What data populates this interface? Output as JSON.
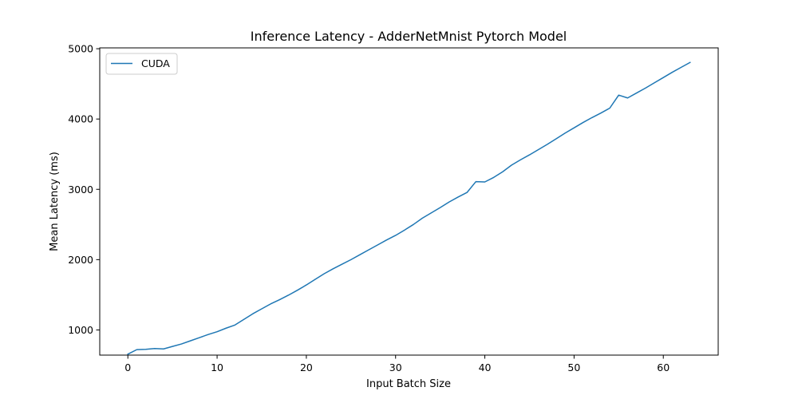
{
  "chart_data": {
    "type": "line",
    "title": "Inference Latency - AdderNetMnist Pytorch Model",
    "xlabel": "Input Batch Size",
    "ylabel": "Mean Latency (ms)",
    "xlim": [
      -3.15,
      66.15
    ],
    "ylim": [
      642,
      5012
    ],
    "xticks": [
      0,
      10,
      20,
      30,
      40,
      50,
      60
    ],
    "yticks": [
      1000,
      2000,
      3000,
      4000,
      5000
    ],
    "grid": false,
    "legend": {
      "placement": "top-left",
      "entries": [
        "CUDA"
      ]
    },
    "series": [
      {
        "name": "CUDA",
        "color": "#1f77b4",
        "x": [
          0,
          1,
          2,
          3,
          4,
          5,
          6,
          7,
          8,
          9,
          10,
          11,
          12,
          13,
          14,
          15,
          16,
          17,
          18,
          19,
          20,
          21,
          22,
          23,
          24,
          25,
          26,
          27,
          28,
          29,
          30,
          31,
          32,
          33,
          34,
          35,
          36,
          37,
          38,
          39,
          40,
          41,
          42,
          43,
          44,
          45,
          46,
          47,
          48,
          49,
          50,
          51,
          52,
          53,
          54,
          55,
          56,
          57,
          58,
          59,
          60,
          61,
          62,
          63
        ],
        "y": [
          655,
          720,
          725,
          735,
          730,
          765,
          800,
          845,
          890,
          935,
          975,
          1025,
          1070,
          1150,
          1230,
          1300,
          1370,
          1430,
          1495,
          1565,
          1640,
          1720,
          1800,
          1870,
          1935,
          2000,
          2070,
          2140,
          2210,
          2280,
          2345,
          2420,
          2500,
          2590,
          2665,
          2740,
          2820,
          2890,
          2955,
          3110,
          3105,
          3170,
          3250,
          3345,
          3420,
          3490,
          3565,
          3640,
          3720,
          3800,
          3875,
          3950,
          4020,
          4085,
          4155,
          4340,
          4300,
          4370,
          4440,
          4515,
          4590,
          4665,
          4735,
          4805
        ]
      }
    ]
  }
}
